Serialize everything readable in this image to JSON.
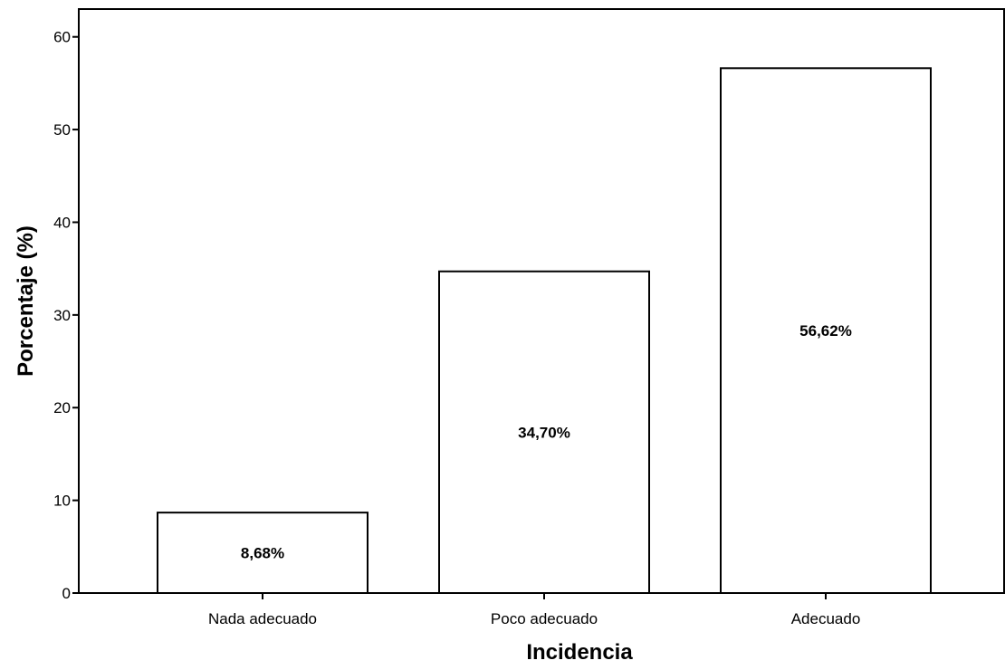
{
  "chart_data": {
    "type": "bar",
    "categories": [
      "Nada adecuado",
      "Poco adecuado",
      "Adecuado"
    ],
    "values": [
      8.68,
      34.7,
      56.62
    ],
    "data_labels": [
      "8,68%",
      "34,70%",
      "56,62%"
    ],
    "title": "",
    "xlabel": "Incidencia",
    "ylabel": "Porcentaje (%)",
    "ylim": [
      0,
      63
    ],
    "yticks": [
      0,
      10,
      20,
      30,
      40,
      50,
      60
    ],
    "grid": false,
    "legend": "none",
    "colors": {
      "bar_fill": "#ffffff",
      "bar_stroke": "#000000",
      "axis": "#000000",
      "background": "#ffffff"
    }
  }
}
